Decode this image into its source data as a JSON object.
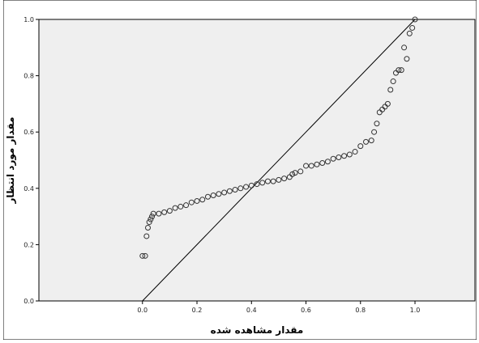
{
  "chart_data": {
    "type": "scatter",
    "title": "",
    "xlabel": "مقدار مشاهده شده",
    "ylabel": "مقدار مورد انتظار",
    "xlim": [
      -0.38,
      1.22
    ],
    "ylim": [
      0.0,
      1.0
    ],
    "x_ticks": [
      "0.0",
      "0.2",
      "0.4",
      "0.6",
      "0.8",
      "1.0"
    ],
    "y_ticks": [
      "0.0",
      "0.2",
      "0.4",
      "0.6",
      "0.8",
      "1.0"
    ],
    "reference_line": {
      "from": [
        0.0,
        0.0
      ],
      "to": [
        1.0,
        1.0
      ]
    },
    "grid": false,
    "background_color": "#efefef",
    "marker_color": "#333333",
    "series": [
      {
        "points": [
          [
            0.0,
            0.16
          ],
          [
            0.01,
            0.16
          ],
          [
            0.015,
            0.23
          ],
          [
            0.02,
            0.26
          ],
          [
            0.025,
            0.28
          ],
          [
            0.03,
            0.29
          ],
          [
            0.035,
            0.3
          ],
          [
            0.04,
            0.31
          ],
          [
            0.06,
            0.31
          ],
          [
            0.08,
            0.315
          ],
          [
            0.1,
            0.32
          ],
          [
            0.12,
            0.33
          ],
          [
            0.14,
            0.335
          ],
          [
            0.16,
            0.34
          ],
          [
            0.18,
            0.35
          ],
          [
            0.2,
            0.355
          ],
          [
            0.22,
            0.36
          ],
          [
            0.24,
            0.37
          ],
          [
            0.26,
            0.375
          ],
          [
            0.28,
            0.38
          ],
          [
            0.3,
            0.385
          ],
          [
            0.32,
            0.39
          ],
          [
            0.34,
            0.395
          ],
          [
            0.36,
            0.4
          ],
          [
            0.38,
            0.405
          ],
          [
            0.4,
            0.41
          ],
          [
            0.42,
            0.415
          ],
          [
            0.44,
            0.42
          ],
          [
            0.46,
            0.425
          ],
          [
            0.48,
            0.425
          ],
          [
            0.5,
            0.43
          ],
          [
            0.52,
            0.435
          ],
          [
            0.54,
            0.44
          ],
          [
            0.55,
            0.45
          ],
          [
            0.56,
            0.455
          ],
          [
            0.58,
            0.46
          ],
          [
            0.6,
            0.48
          ],
          [
            0.62,
            0.48
          ],
          [
            0.64,
            0.485
          ],
          [
            0.66,
            0.49
          ],
          [
            0.68,
            0.495
          ],
          [
            0.7,
            0.505
          ],
          [
            0.72,
            0.51
          ],
          [
            0.74,
            0.515
          ],
          [
            0.76,
            0.52
          ],
          [
            0.78,
            0.53
          ],
          [
            0.8,
            0.55
          ],
          [
            0.82,
            0.565
          ],
          [
            0.84,
            0.57
          ],
          [
            0.85,
            0.6
          ],
          [
            0.86,
            0.63
          ],
          [
            0.87,
            0.67
          ],
          [
            0.88,
            0.68
          ],
          [
            0.89,
            0.69
          ],
          [
            0.9,
            0.7
          ],
          [
            0.91,
            0.75
          ],
          [
            0.92,
            0.78
          ],
          [
            0.93,
            0.81
          ],
          [
            0.94,
            0.82
          ],
          [
            0.95,
            0.82
          ],
          [
            0.96,
            0.9
          ],
          [
            0.97,
            0.86
          ],
          [
            0.98,
            0.95
          ],
          [
            0.99,
            0.97
          ],
          [
            1.0,
            1.0
          ]
        ]
      }
    ]
  }
}
